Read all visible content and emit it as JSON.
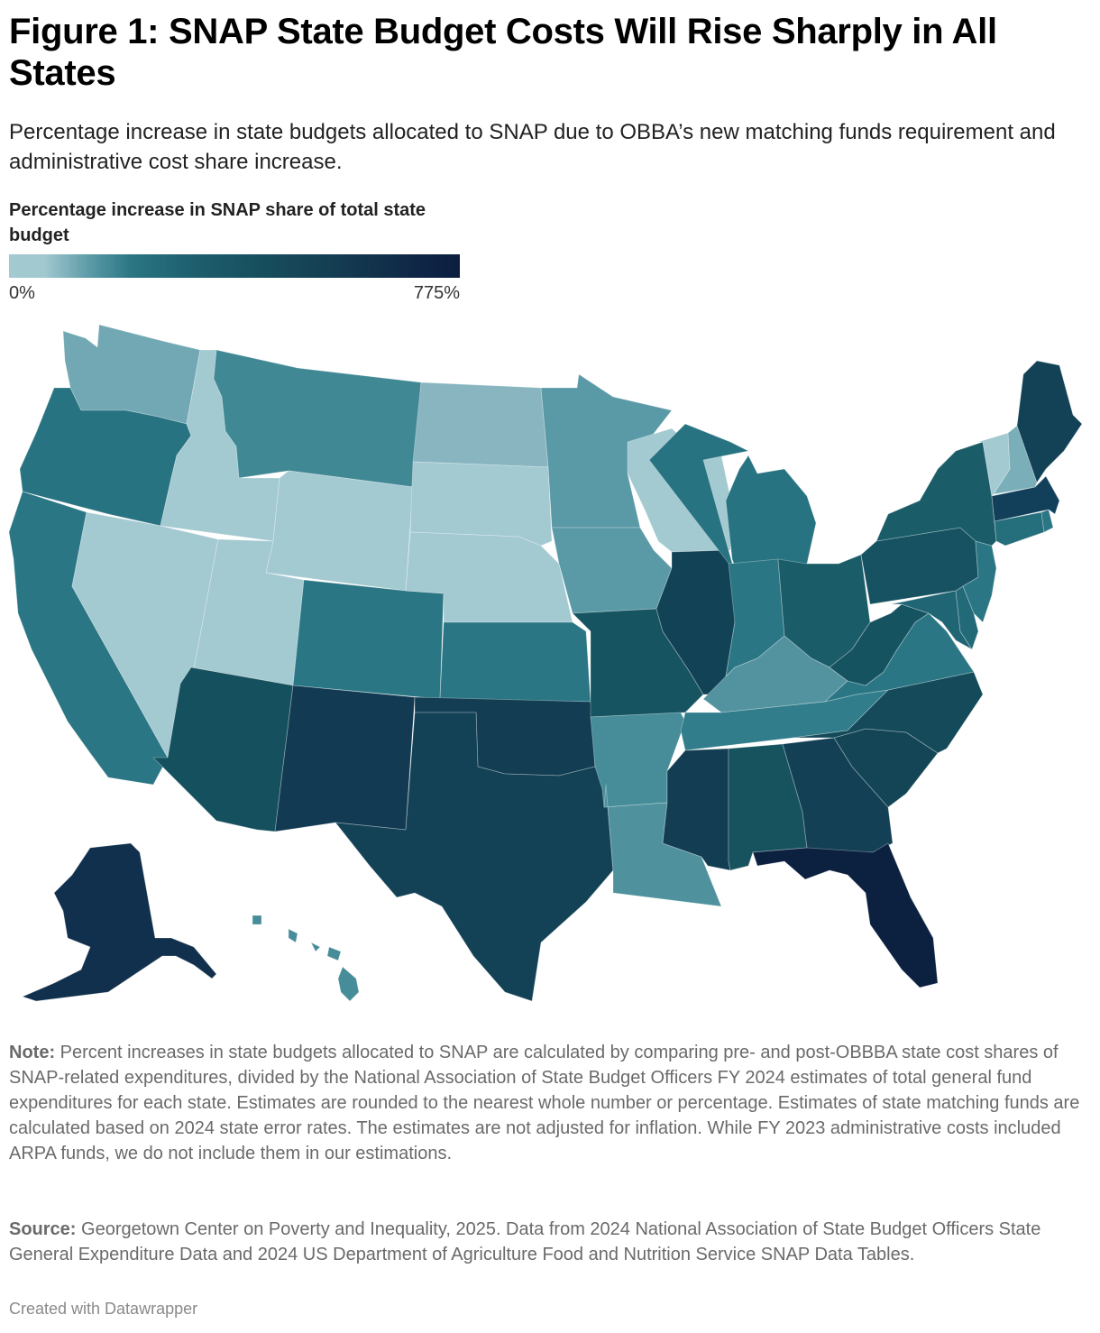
{
  "header": {
    "title": "Figure 1: SNAP State Budget Costs Will Rise Sharply in All States",
    "subtitle": "Percentage increase in state budgets allocated to SNAP due to OBBA’s new matching funds requirement and administrative cost share increase."
  },
  "legend": {
    "title": "Percentage increase in SNAP share of total state budget",
    "min_label": "0%",
    "max_label": "775%",
    "color_low": "#a3c9d1",
    "color_high": "#0b1e40"
  },
  "footer": {
    "note_label": "Note:",
    "note_text": " Percent increases in state budgets allocated to SNAP are calculated by comparing pre- and post-OBBBA state cost shares of SNAP-related expenditures, divided by the National Association of State Budget Officers FY 2024 estimates of total general fund expenditures for each state. Estimates are rounded to the nearest whole number or percentage. Estimates of state matching funds are calculated based on 2024 state error rates. The estimates are not adjusted for inflation. While FY 2023 administrative costs included ARPA funds, we do not include them in our estimations.",
    "source_label": "Source:",
    "source_text": " Georgetown Center on Poverty and Inequality, 2025. Data from 2024 National Association of State Budget Officers State General Expenditure Data and 2024 US Department of Agriculture Food and Nutrition Service SNAP Data Tables.",
    "credit": "Created with Datawrapper"
  },
  "chart_data": {
    "type": "choropleth",
    "title": "Figure 1: SNAP State Budget Costs Will Rise Sharply in All States",
    "subtitle": "Percentage increase in state budgets allocated to SNAP due to OBBA’s new matching funds requirement and administrative cost share increase.",
    "legend_title": "Percentage increase in SNAP share of total state budget",
    "scale_range": [
      0,
      775
    ],
    "scale_unit": "%",
    "note": "Values are not labeled; colors indicate relative magnitude on a continuous scale from light blue (0%) to dark navy (775%).",
    "states": [
      {
        "id": "WA",
        "name": "Washington",
        "color": "#71a8b3"
      },
      {
        "id": "OR",
        "name": "Oregon",
        "color": "#287381"
      },
      {
        "id": "CA",
        "name": "California",
        "color": "#2b7684"
      },
      {
        "id": "ID",
        "name": "Idaho",
        "color": "#a3c9d1"
      },
      {
        "id": "NV",
        "name": "Nevada",
        "color": "#a3c9d1"
      },
      {
        "id": "MT",
        "name": "Montana",
        "color": "#418895"
      },
      {
        "id": "WY",
        "name": "Wyoming",
        "color": "#a3c9d1"
      },
      {
        "id": "UT",
        "name": "Utah",
        "color": "#a3c9d1"
      },
      {
        "id": "CO",
        "name": "Colorado",
        "color": "#2b7684"
      },
      {
        "id": "AZ",
        "name": "Arizona",
        "color": "#15505e"
      },
      {
        "id": "NM",
        "name": "New Mexico",
        "color": "#123a52"
      },
      {
        "id": "ND",
        "name": "North Dakota",
        "color": "#88b5c0"
      },
      {
        "id": "SD",
        "name": "South Dakota",
        "color": "#a3c9d1"
      },
      {
        "id": "NE",
        "name": "Nebraska",
        "color": "#a3c9d1"
      },
      {
        "id": "KS",
        "name": "Kansas",
        "color": "#2b7684"
      },
      {
        "id": "OK",
        "name": "Oklahoma",
        "color": "#123d52"
      },
      {
        "id": "TX",
        "name": "Texas",
        "color": "#134256"
      },
      {
        "id": "MN",
        "name": "Minnesota",
        "color": "#5a99a6"
      },
      {
        "id": "IA",
        "name": "Iowa",
        "color": "#5a99a6"
      },
      {
        "id": "MO",
        "name": "Missouri",
        "color": "#165461"
      },
      {
        "id": "AR",
        "name": "Arkansas",
        "color": "#478d99"
      },
      {
        "id": "LA",
        "name": "Louisiana",
        "color": "#4f929e"
      },
      {
        "id": "WI",
        "name": "Wisconsin",
        "color": "#a3c9d1"
      },
      {
        "id": "IL",
        "name": "Illinois",
        "color": "#124256"
      },
      {
        "id": "MI",
        "name": "Michigan",
        "color": "#287381"
      },
      {
        "id": "IN",
        "name": "Indiana",
        "color": "#2b7684"
      },
      {
        "id": "OH",
        "name": "Ohio",
        "color": "#1b5c69"
      },
      {
        "id": "KY",
        "name": "Kentucky",
        "color": "#52939f"
      },
      {
        "id": "TN",
        "name": "Tennessee",
        "color": "#317d8b"
      },
      {
        "id": "MS",
        "name": "Mississippi",
        "color": "#123d52"
      },
      {
        "id": "AL",
        "name": "Alabama",
        "color": "#17525f"
      },
      {
        "id": "GA",
        "name": "Georgia",
        "color": "#134055"
      },
      {
        "id": "FL",
        "name": "Florida",
        "color": "#0c2040"
      },
      {
        "id": "SC",
        "name": "South Carolina",
        "color": "#134556"
      },
      {
        "id": "NC",
        "name": "North Carolina",
        "color": "#144a5a"
      },
      {
        "id": "VA",
        "name": "Virginia",
        "color": "#2b7684"
      },
      {
        "id": "WV",
        "name": "West Virginia",
        "color": "#165361"
      },
      {
        "id": "MD",
        "name": "Maryland",
        "color": "#1f6574"
      },
      {
        "id": "DE",
        "name": "Delaware",
        "color": "#226a78"
      },
      {
        "id": "PA",
        "name": "Pennsylvania",
        "color": "#165261"
      },
      {
        "id": "NJ",
        "name": "New Jersey",
        "color": "#2b7684"
      },
      {
        "id": "NY",
        "name": "New York",
        "color": "#1b5c69"
      },
      {
        "id": "CT",
        "name": "Connecticut",
        "color": "#256e7c"
      },
      {
        "id": "RI",
        "name": "Rhode Island",
        "color": "#2b7684"
      },
      {
        "id": "MA",
        "name": "Massachusetts",
        "color": "#12405a"
      },
      {
        "id": "VT",
        "name": "Vermont",
        "color": "#a3c9d1"
      },
      {
        "id": "NH",
        "name": "New Hampshire",
        "color": "#7aafba"
      },
      {
        "id": "ME",
        "name": "Maine",
        "color": "#134256"
      },
      {
        "id": "AK",
        "name": "Alaska",
        "color": "#11304d"
      },
      {
        "id": "HI",
        "name": "Hawaii",
        "color": "#478d99"
      }
    ]
  }
}
